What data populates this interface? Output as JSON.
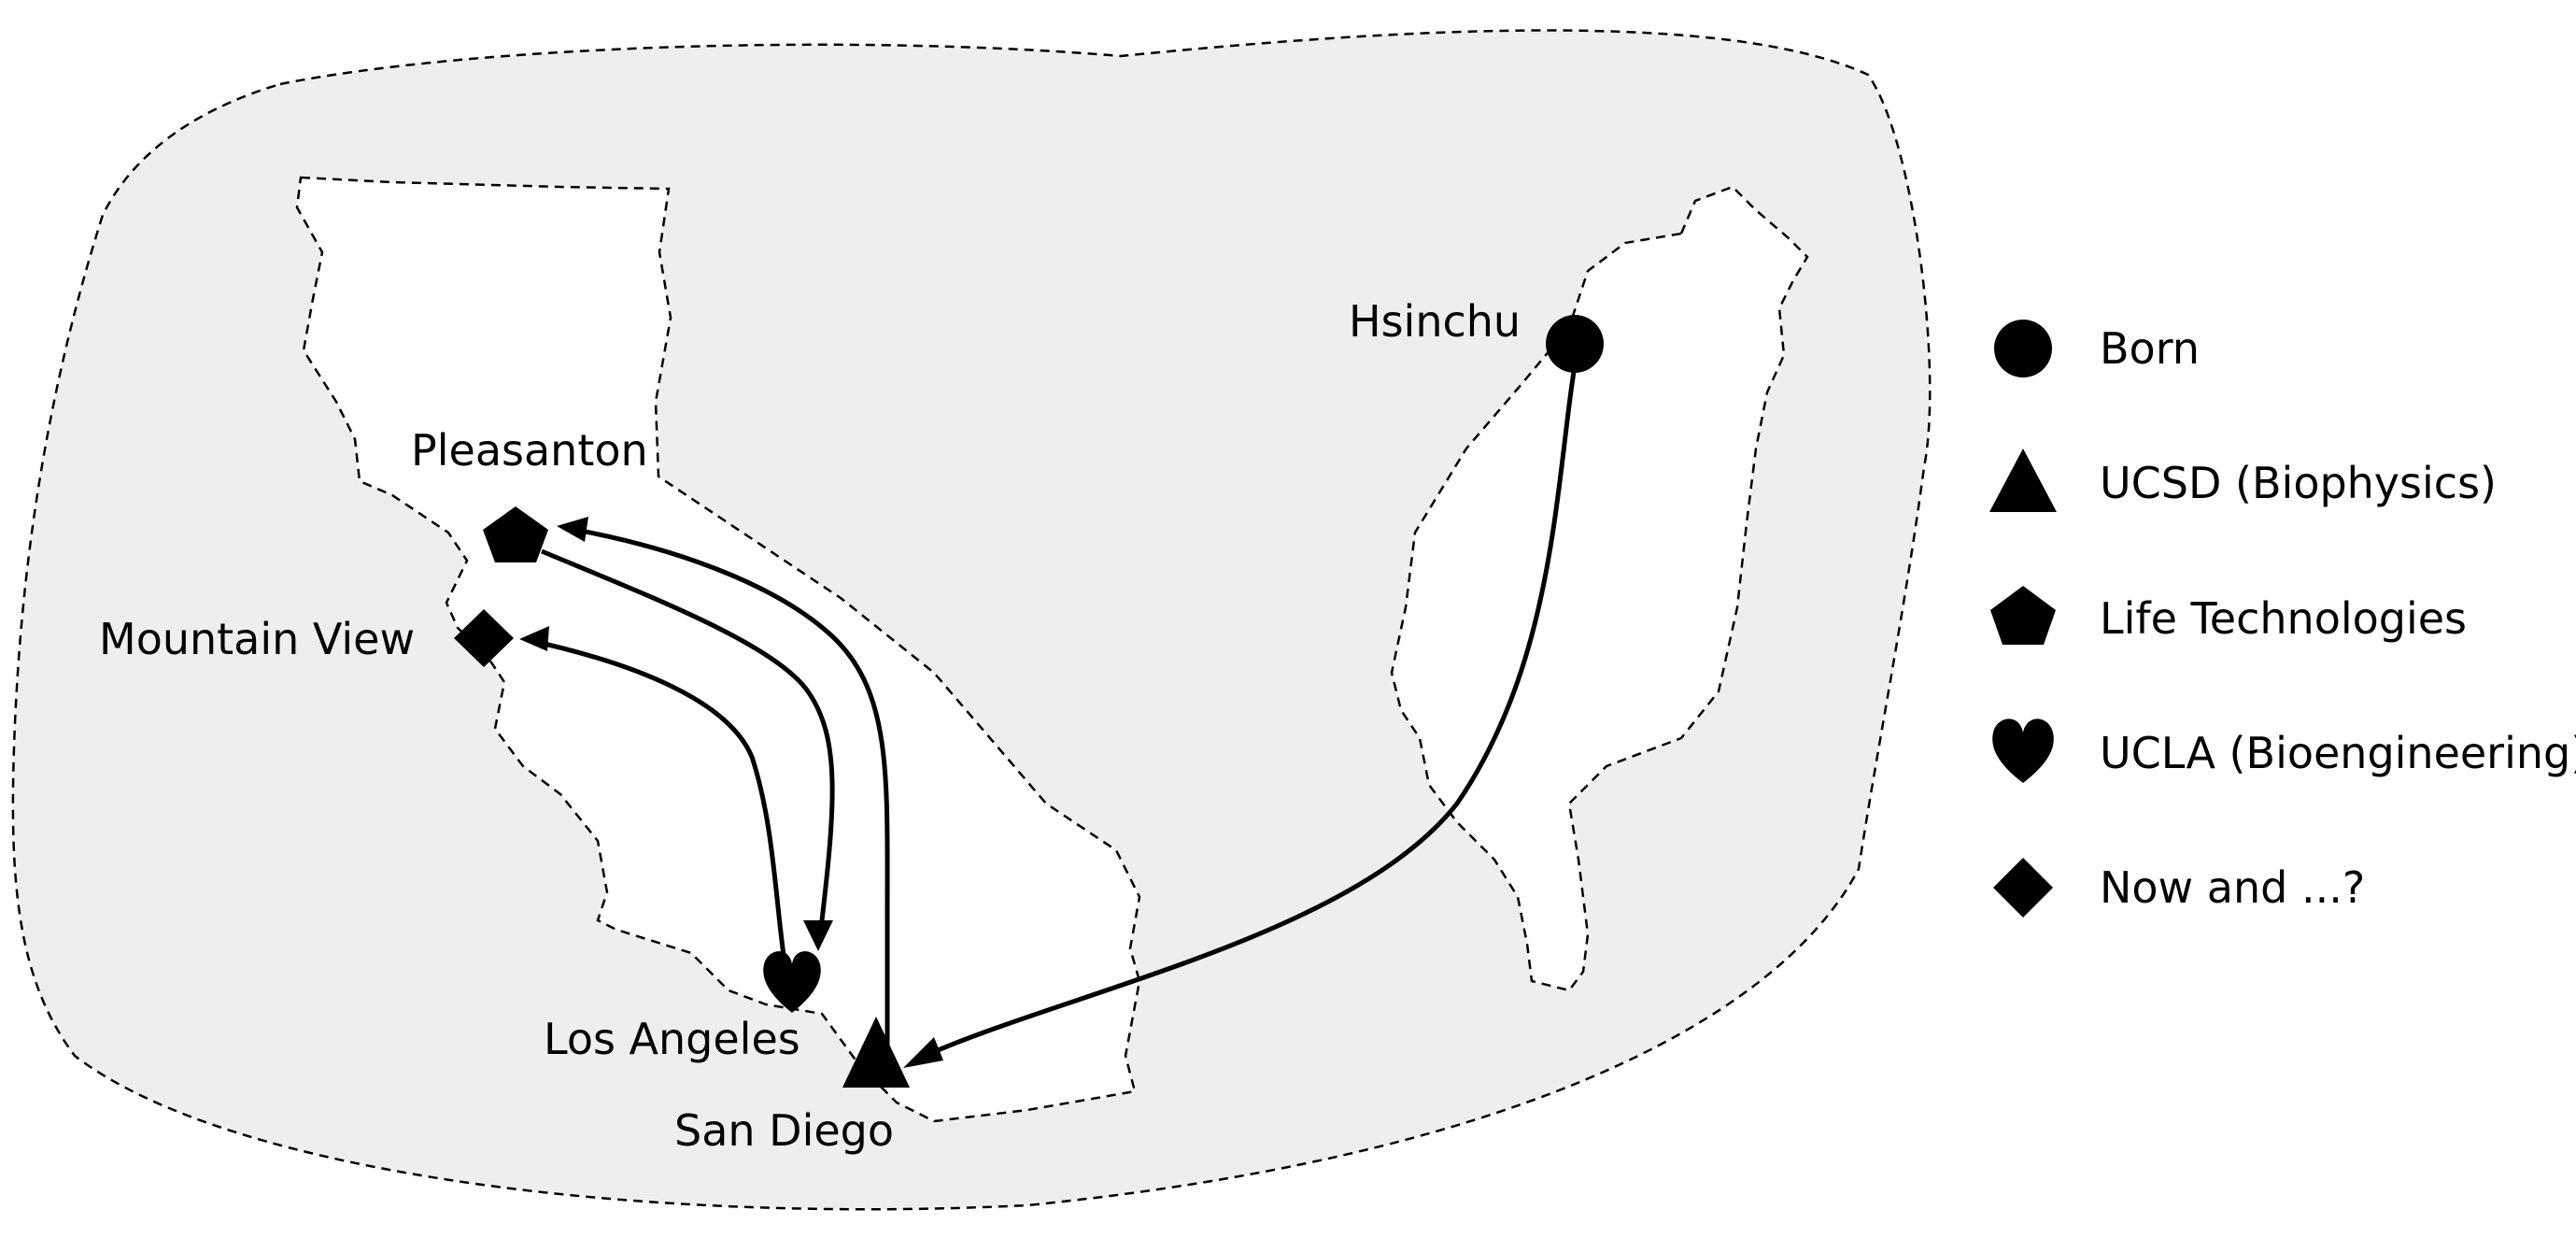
{
  "colors": {
    "background": "#ffffff",
    "region_fill": "#eeeeee",
    "ink": "#000000",
    "land_fill": "#ffffff"
  },
  "cities": {
    "hsinchu": {
      "label": "Hsinchu",
      "marker": "circle-icon"
    },
    "pleasanton": {
      "label": "Pleasanton",
      "marker": "pentagon-icon"
    },
    "mountain_view": {
      "label": "Mountain View",
      "marker": "diamond-icon"
    },
    "los_angeles": {
      "label": "Los Angeles",
      "marker": "heart-icon"
    },
    "san_diego": {
      "label": "San Diego",
      "marker": "triangle-icon"
    }
  },
  "legend": [
    {
      "icon": "circle-icon",
      "label": "Born"
    },
    {
      "icon": "triangle-icon",
      "label": "UCSD (Biophysics)"
    },
    {
      "icon": "pentagon-icon",
      "label": "Life Technologies"
    },
    {
      "icon": "heart-icon",
      "label": "UCLA (Bioengineering)"
    },
    {
      "icon": "diamond-icon",
      "label": "Now and ...?"
    }
  ],
  "routes": [
    {
      "from": "Hsinchu",
      "to": "San Diego"
    },
    {
      "from": "San Diego",
      "to": "Pleasanton"
    },
    {
      "from": "Pleasanton",
      "to": "Los Angeles"
    },
    {
      "from": "Los Angeles",
      "to": "Mountain View"
    }
  ]
}
